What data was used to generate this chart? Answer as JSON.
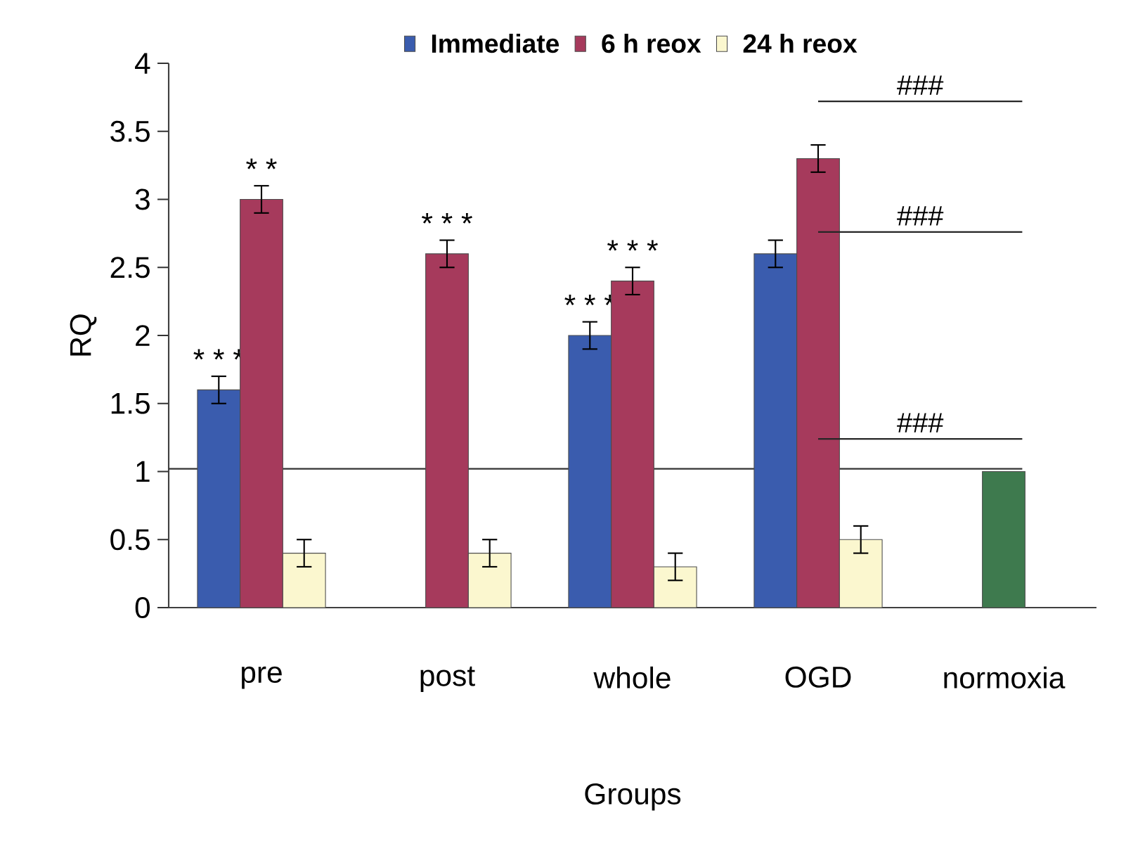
{
  "chart_data": {
    "type": "bar",
    "categories": [
      "pre",
      "post",
      "whole",
      "OGD",
      "normoxia"
    ],
    "series": [
      {
        "name": "Immediate",
        "color": "#3a5cae",
        "values": [
          1.6,
          null,
          2.0,
          2.6,
          null
        ],
        "errors": [
          0.1,
          null,
          0.1,
          0.1,
          null
        ],
        "value_labels": [
          "* * *",
          null,
          "* * *",
          null,
          null
        ]
      },
      {
        "name": "6 h reox",
        "color": "#a63a5c",
        "colors": [
          "#a63a5c",
          "#a63a5c",
          "#a63a5c",
          "#a63a5c",
          "#3e7a4e"
        ],
        "values": [
          3.0,
          2.6,
          2.4,
          3.3,
          1.0
        ],
        "errors": [
          0.1,
          0.1,
          0.1,
          0.1,
          null
        ],
        "value_labels": [
          "* *",
          "* * *",
          "* * *",
          null,
          null
        ]
      },
      {
        "name": "24 h reox",
        "color": "#fbf7cf",
        "values": [
          0.4,
          0.4,
          0.3,
          0.5,
          null
        ],
        "errors": [
          0.1,
          0.1,
          0.1,
          0.1,
          null
        ]
      }
    ],
    "xlabel": "Groups",
    "ylabel": "RQ",
    "ylim": [
      0,
      4
    ],
    "yticks": [
      0,
      0.5,
      1,
      1.5,
      2,
      2.5,
      3,
      3.5,
      4
    ],
    "ref_lines": [
      {
        "axis": "y",
        "value": 1.02
      }
    ],
    "annotations": [
      "###",
      "###",
      "###"
    ],
    "legend": "top",
    "grid": false
  }
}
